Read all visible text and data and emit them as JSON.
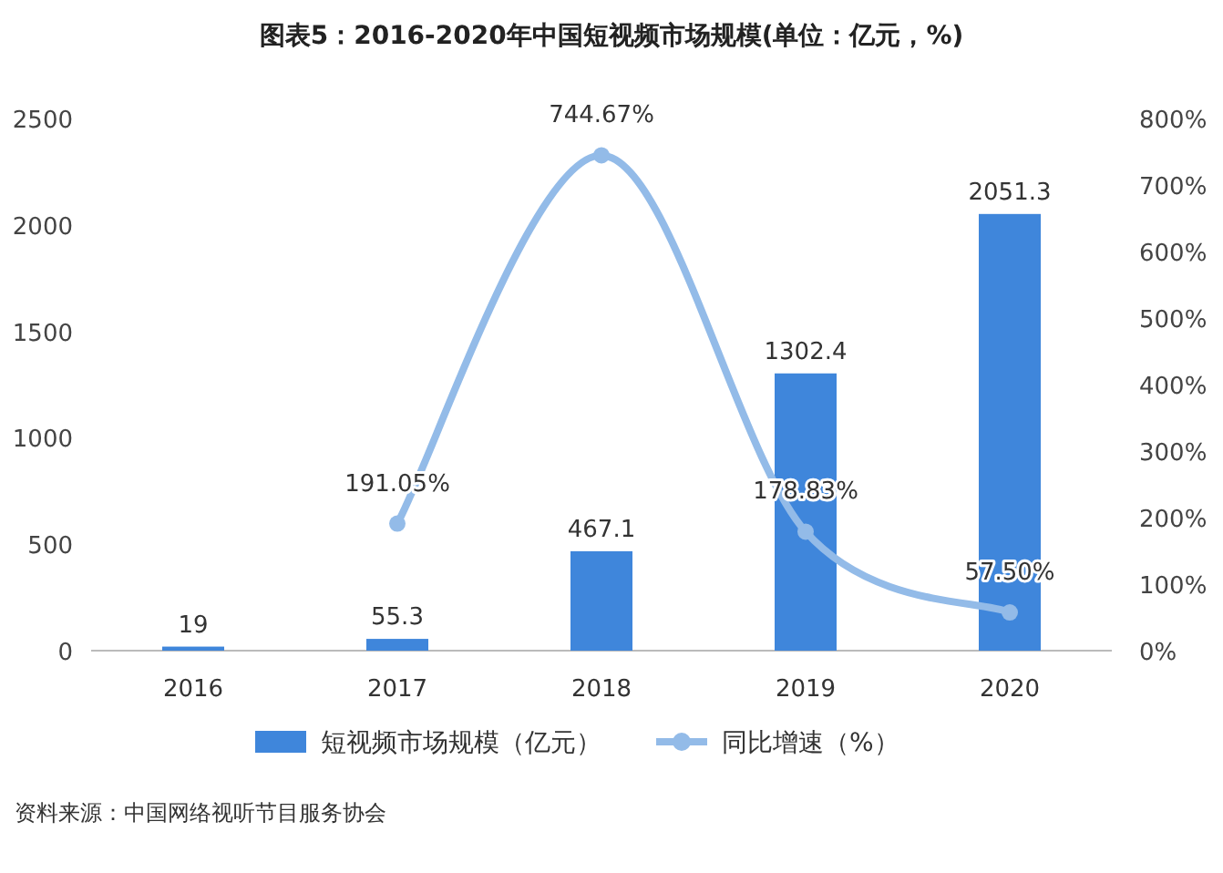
{
  "chart_data": {
    "type": "bar",
    "title": "图表5：2016-2020年中国短视频市场规模(单位：亿元，%)",
    "categories": [
      "2016",
      "2017",
      "2018",
      "2019",
      "2020"
    ],
    "series": [
      {
        "name": "短视频市场规模（亿元）",
        "color": "#3f86db",
        "values": [
          19,
          55.3,
          467.1,
          1302.4,
          2051.3
        ],
        "value_labels": [
          "19",
          "55.3",
          "467.1",
          "1302.4",
          "2051.3"
        ]
      },
      {
        "name": "同比增速（%）",
        "type": "line",
        "axis": "y2",
        "color": "#93bbe8",
        "marker": "circle",
        "values": [
          null,
          191.05,
          744.67,
          178.83,
          57.5
        ],
        "value_labels": [
          null,
          "191.05%",
          "744.67%",
          "178.83%",
          "57.50%"
        ]
      }
    ],
    "ylim": [
      0,
      2500
    ],
    "yticks": [
      0,
      500,
      1000,
      1500,
      2000,
      2500
    ],
    "y2lim": [
      0,
      800
    ],
    "y2ticks": [
      {
        "value": 0,
        "label": "0%"
      },
      {
        "value": 100,
        "label": "100%"
      },
      {
        "value": 200,
        "label": "200%"
      },
      {
        "value": 300,
        "label": "300%"
      },
      {
        "value": 400,
        "label": "400%"
      },
      {
        "value": 500,
        "label": "500%"
      },
      {
        "value": 600,
        "label": "600%"
      },
      {
        "value": 700,
        "label": "700%"
      },
      {
        "value": 800,
        "label": "800%"
      }
    ],
    "grid": false,
    "legend": "bottom",
    "annotations": [
      "资料来源：中国网络视听节目服务协会"
    ]
  }
}
